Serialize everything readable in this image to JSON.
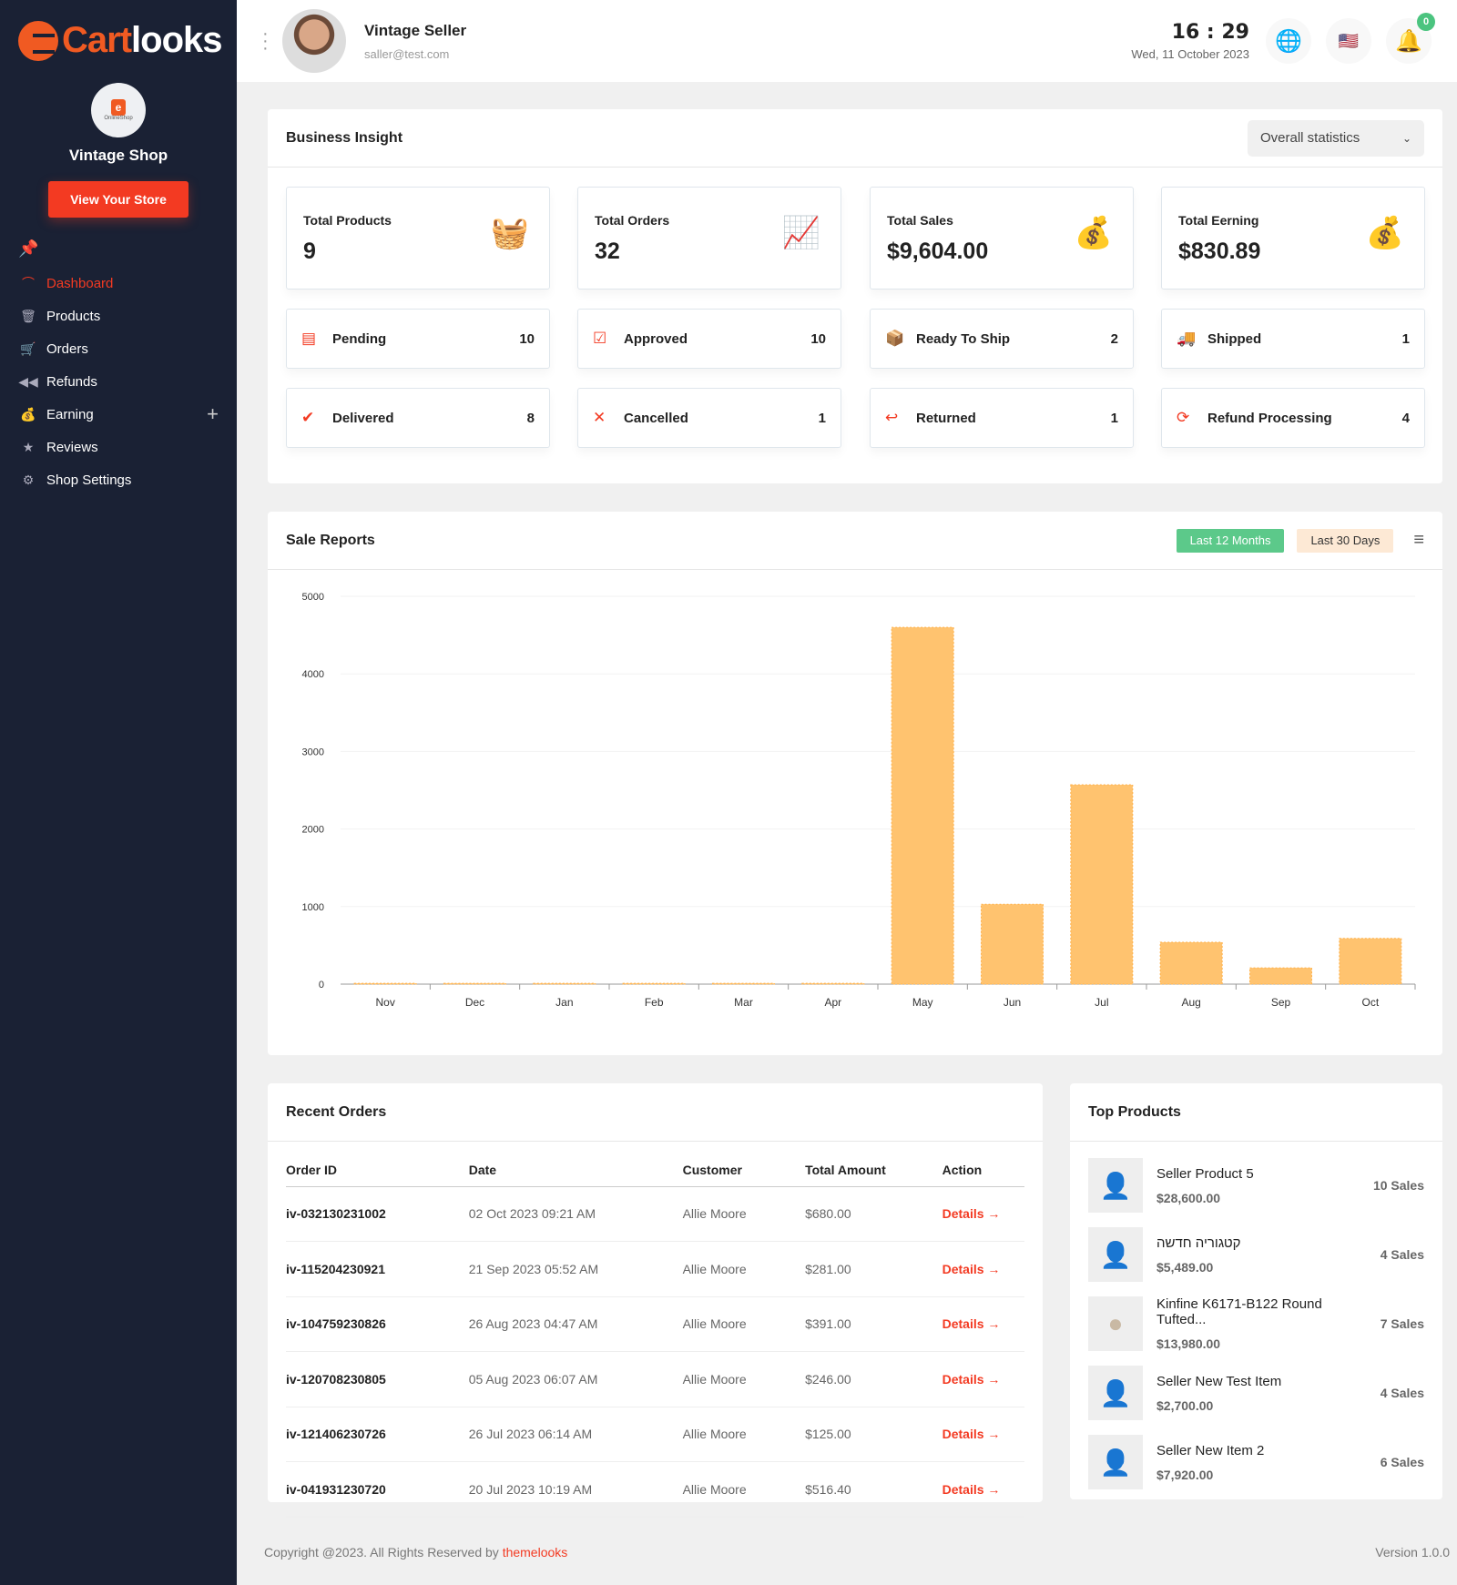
{
  "brand": {
    "part1": "Cart",
    "part2": "looks"
  },
  "sidebar": {
    "shop_name": "Vintage Shop",
    "shop_logo_text": "OnlineShop",
    "view_store": "View Your Store",
    "items": [
      {
        "label": "Dashboard",
        "icon": "⌒"
      },
      {
        "label": "Products",
        "icon": "🗑"
      },
      {
        "label": "Orders",
        "icon": "🛒"
      },
      {
        "label": "Refunds",
        "icon": "◀◀"
      },
      {
        "label": "Earning",
        "icon": "💰"
      },
      {
        "label": "Reviews",
        "icon": "★"
      },
      {
        "label": "Shop Settings",
        "icon": "⚙"
      }
    ],
    "earning_expand": "+"
  },
  "header": {
    "user_name": "Vintage Seller",
    "user_email": "saller@test.com",
    "time": "16 : 29",
    "date": "Wed, 11 October 2023",
    "notifications": "0"
  },
  "insight": {
    "title": "Business Insight",
    "filter": "Overall statistics",
    "totals": [
      {
        "label": "Total Products",
        "value": "9",
        "icon": "🧺"
      },
      {
        "label": "Total Orders",
        "value": "32",
        "icon": "📈"
      },
      {
        "label": "Total Sales",
        "value": "$9,604.00",
        "icon": "💰"
      },
      {
        "label": "Total Eerning",
        "value": "$830.89",
        "icon": "💰"
      }
    ],
    "statuses": [
      {
        "label": "Pending",
        "count": "10",
        "icon": "▤"
      },
      {
        "label": "Approved",
        "count": "10",
        "icon": "☑"
      },
      {
        "label": "Ready To Ship",
        "count": "2",
        "icon": "📦"
      },
      {
        "label": "Shipped",
        "count": "1",
        "icon": "🚚"
      },
      {
        "label": "Delivered",
        "count": "8",
        "icon": "✔"
      },
      {
        "label": "Cancelled",
        "count": "1",
        "icon": "✕"
      },
      {
        "label": "Returned",
        "count": "1",
        "icon": "↩"
      },
      {
        "label": "Refund Processing",
        "count": "4",
        "icon": "⟳"
      }
    ]
  },
  "sales": {
    "title": "Sale Reports",
    "tab_active": "Last 12 Months",
    "tab_other": "Last 30 Days"
  },
  "chart_data": {
    "type": "bar",
    "categories": [
      "Nov",
      "Dec",
      "Jan",
      "Feb",
      "Mar",
      "Apr",
      "May",
      "Jun",
      "Jul",
      "Aug",
      "Sep",
      "Oct"
    ],
    "values": [
      10,
      10,
      10,
      10,
      10,
      10,
      4600,
      1030,
      2570,
      540,
      210,
      590
    ],
    "ylim": [
      0,
      5000
    ],
    "yticks": [
      0,
      1000,
      2000,
      3000,
      4000,
      5000
    ],
    "color": "#ffc36f",
    "grid": true
  },
  "orders": {
    "title": "Recent Orders",
    "columns": [
      "Order ID",
      "Date",
      "Customer",
      "Total Amount",
      "Action"
    ],
    "rows": [
      [
        "iv-032130231002",
        "02 Oct 2023 09:21 AM",
        "Allie Moore",
        "$680.00",
        "Details →"
      ],
      [
        "iv-115204230921",
        "21 Sep 2023 05:52 AM",
        "Allie Moore",
        "$281.00",
        "Details →"
      ],
      [
        "iv-104759230826",
        "26 Aug 2023 04:47 AM",
        "Allie Moore",
        "$391.00",
        "Details →"
      ],
      [
        "iv-120708230805",
        "05 Aug 2023 06:07 AM",
        "Allie Moore",
        "$246.00",
        "Details →"
      ],
      [
        "iv-121406230726",
        "26 Jul 2023 06:14 AM",
        "Allie Moore",
        "$125.00",
        "Details →"
      ],
      [
        "iv-041931230720",
        "20 Jul 2023 10:19 AM",
        "Allie Moore",
        "$516.40",
        "Details →"
      ]
    ]
  },
  "top": {
    "title": "Top Products",
    "items": [
      {
        "name": "Seller Product 5",
        "price": "$28,600.00",
        "sales": "10 Sales"
      },
      {
        "name": "קטגוריה חדשה",
        "price": "$5,489.00",
        "sales": "4 Sales"
      },
      {
        "name": "Kinfine K6171-B122 Round Tufted...",
        "price": "$13,980.00",
        "sales": "7 Sales"
      },
      {
        "name": "Seller New Test Item",
        "price": "$2,700.00",
        "sales": "4 Sales"
      },
      {
        "name": "Seller New Item 2",
        "price": "$7,920.00",
        "sales": "6 Sales"
      }
    ]
  },
  "footer": {
    "copyright": "Copyright @2023. All Rights Reserved by ",
    "link": "themelooks",
    "version": "Version 1.0.0"
  }
}
